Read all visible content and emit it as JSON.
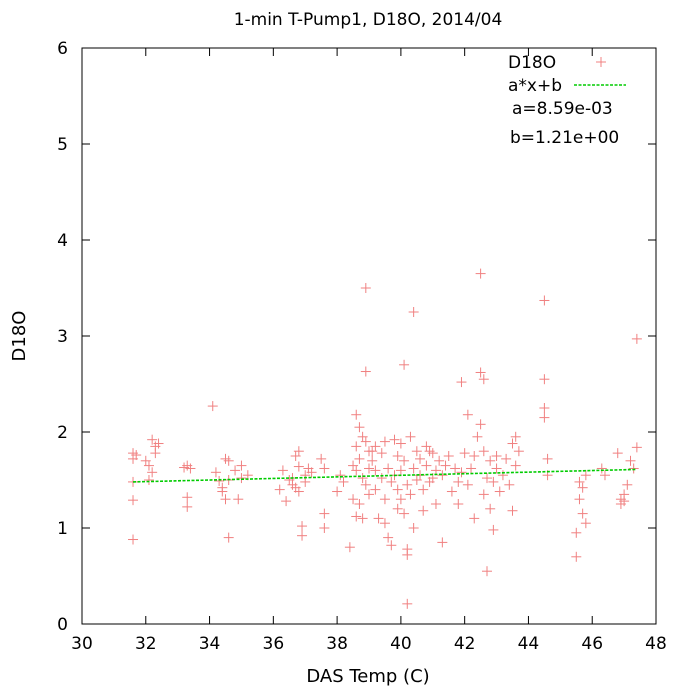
{
  "chart_data": {
    "type": "scatter",
    "title": "1-min T-Pump1, D18O, 2014/04",
    "xlabel": "DAS Temp (C)",
    "ylabel": "D18O",
    "xlim": [
      30,
      48
    ],
    "ylim": [
      0,
      6
    ],
    "xticks": [
      "30",
      "32",
      "34",
      "36",
      "38",
      "40",
      "42",
      "44",
      "46",
      "48"
    ],
    "yticks": [
      "0",
      "1",
      "2",
      "3",
      "4",
      "5",
      "6"
    ],
    "grid": false,
    "legend_position": "top-right",
    "series": [
      {
        "name": "D18O",
        "marker": "plus",
        "color": "#f08080",
        "points": [
          [
            31.6,
            1.78
          ],
          [
            31.6,
            1.72
          ],
          [
            31.6,
            1.48
          ],
          [
            31.6,
            1.29
          ],
          [
            31.6,
            0.88
          ],
          [
            31.7,
            1.76
          ],
          [
            32.0,
            1.7
          ],
          [
            32.1,
            1.65
          ],
          [
            32.1,
            1.5
          ],
          [
            32.2,
            1.92
          ],
          [
            32.2,
            1.58
          ],
          [
            32.3,
            1.85
          ],
          [
            32.3,
            1.78
          ],
          [
            32.4,
            1.88
          ],
          [
            33.2,
            1.63
          ],
          [
            33.3,
            1.65
          ],
          [
            33.3,
            1.32
          ],
          [
            33.3,
            1.22
          ],
          [
            33.4,
            1.62
          ],
          [
            34.1,
            2.27
          ],
          [
            34.2,
            1.58
          ],
          [
            34.3,
            1.49
          ],
          [
            34.4,
            1.42
          ],
          [
            34.4,
            1.38
          ],
          [
            34.5,
            1.72
          ],
          [
            34.5,
            1.3
          ],
          [
            34.6,
            1.7
          ],
          [
            34.6,
            1.5
          ],
          [
            34.6,
            0.9
          ],
          [
            34.8,
            1.6
          ],
          [
            34.9,
            1.3
          ],
          [
            35.0,
            1.65
          ],
          [
            35.0,
            1.52
          ],
          [
            35.2,
            1.55
          ],
          [
            36.2,
            1.4
          ],
          [
            36.3,
            1.6
          ],
          [
            36.4,
            1.28
          ],
          [
            36.5,
            1.5
          ],
          [
            36.6,
            1.52
          ],
          [
            36.6,
            1.45
          ],
          [
            36.7,
            1.75
          ],
          [
            36.7,
            1.42
          ],
          [
            36.8,
            1.8
          ],
          [
            36.8,
            1.64
          ],
          [
            36.8,
            1.38
          ],
          [
            36.9,
            1.02
          ],
          [
            36.9,
            0.92
          ],
          [
            37.0,
            1.55
          ],
          [
            37.0,
            1.48
          ],
          [
            37.1,
            1.62
          ],
          [
            37.2,
            1.58
          ],
          [
            37.5,
            1.72
          ],
          [
            37.6,
            1.62
          ],
          [
            37.6,
            1.15
          ],
          [
            37.6,
            1.0
          ],
          [
            38.0,
            1.38
          ],
          [
            38.1,
            1.55
          ],
          [
            38.2,
            1.48
          ],
          [
            38.4,
            0.8
          ],
          [
            38.5,
            1.65
          ],
          [
            38.5,
            1.3
          ],
          [
            38.6,
            2.18
          ],
          [
            38.6,
            1.85
          ],
          [
            38.6,
            1.6
          ],
          [
            38.6,
            1.12
          ],
          [
            38.7,
            2.05
          ],
          [
            38.7,
            1.72
          ],
          [
            38.7,
            1.25
          ],
          [
            38.8,
            1.95
          ],
          [
            38.8,
            1.52
          ],
          [
            38.8,
            1.1
          ],
          [
            38.9,
            3.5
          ],
          [
            38.9,
            2.63
          ],
          [
            38.9,
            1.9
          ],
          [
            38.9,
            1.45
          ],
          [
            39.0,
            1.8
          ],
          [
            39.0,
            1.62
          ],
          [
            39.0,
            1.35
          ],
          [
            39.1,
            1.8
          ],
          [
            39.1,
            1.7
          ],
          [
            39.2,
            1.85
          ],
          [
            39.2,
            1.6
          ],
          [
            39.2,
            1.4
          ],
          [
            39.3,
            1.1
          ],
          [
            39.4,
            1.78
          ],
          [
            39.4,
            1.52
          ],
          [
            39.5,
            1.9
          ],
          [
            39.5,
            1.3
          ],
          [
            39.5,
            1.05
          ],
          [
            39.6,
            1.62
          ],
          [
            39.6,
            0.9
          ],
          [
            39.7,
            1.48
          ],
          [
            39.7,
            0.82
          ],
          [
            39.8,
            1.92
          ],
          [
            39.8,
            1.55
          ],
          [
            39.9,
            1.75
          ],
          [
            39.9,
            1.4
          ],
          [
            39.9,
            1.2
          ],
          [
            40.0,
            1.88
          ],
          [
            40.0,
            1.6
          ],
          [
            40.0,
            1.3
          ],
          [
            40.1,
            2.7
          ],
          [
            40.1,
            1.7
          ],
          [
            40.1,
            1.15
          ],
          [
            40.2,
            1.45
          ],
          [
            40.2,
            0.78
          ],
          [
            40.2,
            0.72
          ],
          [
            40.2,
            0.21
          ],
          [
            40.3,
            1.95
          ],
          [
            40.3,
            1.35
          ],
          [
            40.4,
            3.25
          ],
          [
            40.4,
            1.62
          ],
          [
            40.4,
            1.0
          ],
          [
            40.5,
            1.8
          ],
          [
            40.5,
            1.5
          ],
          [
            40.6,
            1.72
          ],
          [
            40.6,
            1.55
          ],
          [
            40.7,
            1.4
          ],
          [
            40.7,
            1.18
          ],
          [
            40.8,
            1.85
          ],
          [
            40.8,
            1.65
          ],
          [
            40.9,
            1.8
          ],
          [
            40.9,
            1.48
          ],
          [
            41.0,
            1.78
          ],
          [
            41.0,
            1.52
          ],
          [
            41.1,
            1.6
          ],
          [
            41.1,
            1.25
          ],
          [
            41.2,
            1.7
          ],
          [
            41.3,
            1.55
          ],
          [
            41.3,
            0.85
          ],
          [
            41.4,
            1.65
          ],
          [
            41.5,
            1.75
          ],
          [
            41.6,
            1.38
          ],
          [
            41.7,
            1.62
          ],
          [
            41.8,
            1.48
          ],
          [
            41.8,
            1.25
          ],
          [
            41.9,
            2.52
          ],
          [
            41.9,
            1.58
          ],
          [
            42.0,
            1.78
          ],
          [
            42.1,
            2.18
          ],
          [
            42.1,
            1.45
          ],
          [
            42.2,
            1.62
          ],
          [
            42.3,
            1.75
          ],
          [
            42.3,
            1.1
          ],
          [
            42.4,
            1.95
          ],
          [
            42.5,
            3.65
          ],
          [
            42.5,
            2.62
          ],
          [
            42.5,
            2.08
          ],
          [
            42.6,
            2.55
          ],
          [
            42.6,
            1.8
          ],
          [
            42.6,
            1.35
          ],
          [
            42.7,
            1.52
          ],
          [
            42.7,
            0.55
          ],
          [
            42.8,
            1.7
          ],
          [
            42.8,
            1.2
          ],
          [
            42.9,
            1.48
          ],
          [
            42.9,
            0.98
          ],
          [
            43.0,
            1.75
          ],
          [
            43.0,
            1.62
          ],
          [
            43.1,
            1.38
          ],
          [
            43.2,
            1.55
          ],
          [
            43.3,
            1.72
          ],
          [
            43.4,
            1.45
          ],
          [
            43.5,
            1.88
          ],
          [
            43.5,
            1.18
          ],
          [
            43.6,
            1.95
          ],
          [
            43.6,
            1.65
          ],
          [
            43.7,
            1.8
          ],
          [
            44.5,
            3.37
          ],
          [
            44.5,
            2.55
          ],
          [
            44.5,
            2.25
          ],
          [
            44.5,
            2.15
          ],
          [
            44.6,
            1.72
          ],
          [
            44.6,
            1.55
          ],
          [
            45.5,
            0.7
          ],
          [
            45.5,
            0.95
          ],
          [
            45.6,
            1.48
          ],
          [
            45.6,
            1.3
          ],
          [
            45.7,
            1.42
          ],
          [
            45.7,
            1.15
          ],
          [
            45.8,
            1.55
          ],
          [
            45.8,
            1.05
          ],
          [
            46.3,
            1.62
          ],
          [
            46.4,
            1.55
          ],
          [
            46.8,
            1.78
          ],
          [
            46.9,
            1.3
          ],
          [
            46.9,
            1.25
          ],
          [
            47.0,
            1.35
          ],
          [
            47.0,
            1.28
          ],
          [
            47.1,
            1.45
          ],
          [
            47.2,
            1.7
          ],
          [
            47.3,
            1.62
          ],
          [
            47.4,
            2.97
          ],
          [
            47.4,
            1.84
          ]
        ]
      },
      {
        "name": "a*x+b",
        "type": "line",
        "color": "#00cc00",
        "x": [
          31.6,
          47.4
        ],
        "y": [
          1.48,
          1.61
        ]
      }
    ],
    "annotations": [
      "a=8.59e-03",
      "b=1.21e+00"
    ]
  }
}
